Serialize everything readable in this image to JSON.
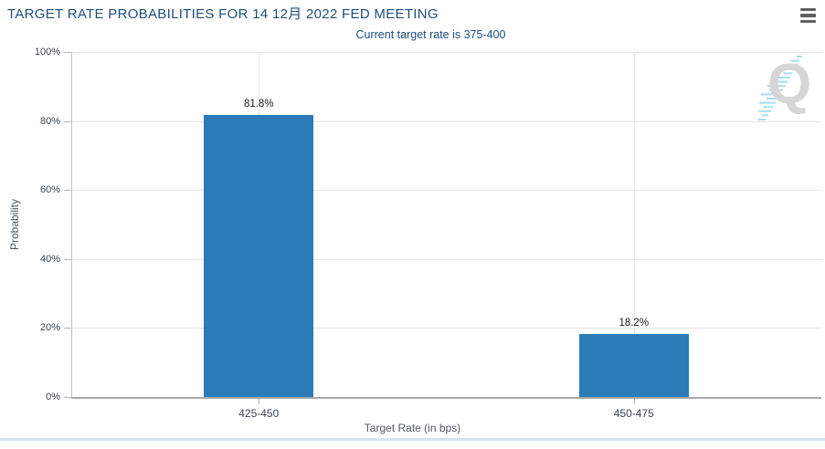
{
  "header": {
    "title": "TARGET RATE PROBABILITIES FOR 14 12月 2022 FED MEETING",
    "subtitle": "Current target rate is 375-400"
  },
  "watermark": {
    "letter": "Q"
  },
  "colors": {
    "bar": "#2b7cb9",
    "title_text": "#1f4e79",
    "axis_label": "#3c4650",
    "axis_title": "#4c5863",
    "gridline": "#e5e5e5",
    "watermark_gray": "#d6d6d6",
    "watermark_blue": "#a9ddf2",
    "bottom_border": "#d5e2ee"
  },
  "chart_data": {
    "type": "bar",
    "title": "TARGET RATE PROBABILITIES FOR 14 12月 2022 FED MEETING",
    "subtitle": "Current target rate is 375-400",
    "categories": [
      "425-450",
      "450-475"
    ],
    "values": [
      81.8,
      18.2
    ],
    "value_labels": [
      "81.8%",
      "18.2%"
    ],
    "xlabel": "Target Rate (in bps)",
    "ylabel": "Probability",
    "ylim": [
      0,
      100
    ],
    "ytick_step": 20,
    "yticks": [
      "0%",
      "20%",
      "40%",
      "60%",
      "80%",
      "100%"
    ],
    "grid": true,
    "legend": false
  }
}
